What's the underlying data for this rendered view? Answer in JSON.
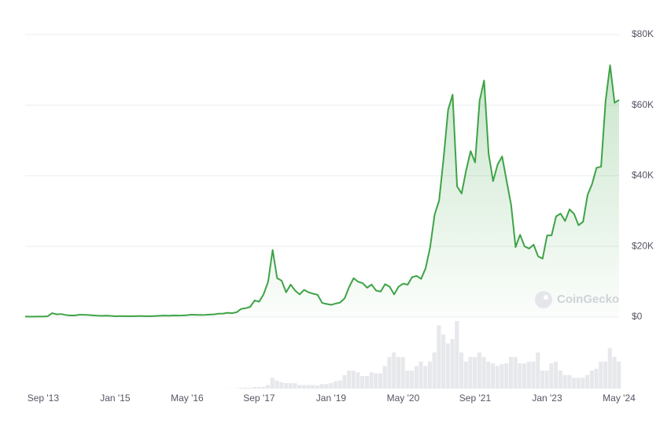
{
  "chart_data": {
    "type": "area",
    "watermark": "CoinGecko",
    "color": "#3ea346",
    "volume_color": "#e6e8eb",
    "grid": true,
    "x": [
      "2013-05",
      "2013-06",
      "2013-07",
      "2013-08",
      "2013-09",
      "2013-10",
      "2013-11",
      "2013-12",
      "2014-01",
      "2014-02",
      "2014-03",
      "2014-04",
      "2014-05",
      "2014-06",
      "2014-07",
      "2014-08",
      "2014-09",
      "2014-10",
      "2014-11",
      "2014-12",
      "2015-01",
      "2015-02",
      "2015-03",
      "2015-04",
      "2015-05",
      "2015-06",
      "2015-07",
      "2015-08",
      "2015-09",
      "2015-10",
      "2015-11",
      "2015-12",
      "2016-01",
      "2016-02",
      "2016-03",
      "2016-04",
      "2016-05",
      "2016-06",
      "2016-07",
      "2016-08",
      "2016-09",
      "2016-10",
      "2016-11",
      "2016-12",
      "2017-01",
      "2017-02",
      "2017-03",
      "2017-04",
      "2017-05",
      "2017-06",
      "2017-07",
      "2017-08",
      "2017-09",
      "2017-10",
      "2017-11",
      "2017-12",
      "2018-01",
      "2018-02",
      "2018-03",
      "2018-04",
      "2018-05",
      "2018-06",
      "2018-07",
      "2018-08",
      "2018-09",
      "2018-10",
      "2018-11",
      "2018-12",
      "2019-01",
      "2019-02",
      "2019-03",
      "2019-04",
      "2019-05",
      "2019-06",
      "2019-07",
      "2019-08",
      "2019-09",
      "2019-10",
      "2019-11",
      "2019-12",
      "2020-01",
      "2020-02",
      "2020-03",
      "2020-04",
      "2020-05",
      "2020-06",
      "2020-07",
      "2020-08",
      "2020-09",
      "2020-10",
      "2020-11",
      "2020-12",
      "2021-01",
      "2021-02",
      "2021-03",
      "2021-04",
      "2021-05",
      "2021-06",
      "2021-07",
      "2021-08",
      "2021-09",
      "2021-10",
      "2021-11",
      "2021-12",
      "2022-01",
      "2022-02",
      "2022-03",
      "2022-04",
      "2022-05",
      "2022-06",
      "2022-07",
      "2022-08",
      "2022-09",
      "2022-10",
      "2022-11",
      "2022-12",
      "2023-01",
      "2023-02",
      "2023-03",
      "2023-04",
      "2023-05",
      "2023-06",
      "2023-07",
      "2023-08",
      "2023-09",
      "2023-10",
      "2023-11",
      "2023-12",
      "2024-01",
      "2024-02",
      "2024-03",
      "2024-04",
      "2024-05"
    ],
    "values": [
      130,
      100,
      100,
      135,
      135,
      200,
      1100,
      750,
      850,
      570,
      450,
      450,
      630,
      640,
      590,
      480,
      390,
      340,
      380,
      320,
      220,
      250,
      245,
      235,
      230,
      265,
      285,
      230,
      236,
      315,
      375,
      430,
      370,
      440,
      415,
      450,
      530,
      670,
      625,
      575,
      610,
      700,
      745,
      960,
      970,
      1190,
      1080,
      1350,
      2300,
      2500,
      2870,
      4700,
      4350,
      6450,
      10000,
      19000,
      11000,
      10300,
      7000,
      9200,
      7500,
      6400,
      7700,
      7000,
      6600,
      6300,
      4000,
      3700,
      3450,
      3800,
      4100,
      5300,
      8500,
      11000,
      10000,
      9600,
      8300,
      9200,
      7500,
      7200,
      9300,
      8600,
      6400,
      8600,
      9450,
      9150,
      11300,
      11650,
      10800,
      13800,
      19700,
      29000,
      33000,
      45000,
      58700,
      63000,
      37000,
      35000,
      41500,
      47000,
      43800,
      61300,
      67000,
      46300,
      38500,
      43200,
      45500,
      38600,
      31800,
      19800,
      23300,
      20000,
      19400,
      20500,
      17200,
      16550,
      23100,
      23150,
      28500,
      29300,
      27200,
      30500,
      29200,
      26000,
      27000,
      34600,
      37700,
      42300,
      42600,
      61200,
      71300,
      60700,
      61500
    ],
    "volumes": [
      0.01,
      0.01,
      0.01,
      0.01,
      0.01,
      0.02,
      0.1,
      0.06,
      0.03,
      0.03,
      0.03,
      0.03,
      0.03,
      0.03,
      0.03,
      0.03,
      0.03,
      0.03,
      0.03,
      0.03,
      0.03,
      0.03,
      0.03,
      0.03,
      0.03,
      0.03,
      0.03,
      0.03,
      0.03,
      0.03,
      0.03,
      0.03,
      0.05,
      0.05,
      0.05,
      0.05,
      0.05,
      0.05,
      0.05,
      0.05,
      0.05,
      0.05,
      0.05,
      0.05,
      0.1,
      0.1,
      0.15,
      0.2,
      0.8,
      1.2,
      1,
      1.8,
      1.8,
      2,
      4,
      12,
      9,
      7,
      6,
      6,
      6,
      4,
      4,
      4,
      4,
      3.5,
      5,
      5,
      6,
      8,
      9,
      15,
      20,
      20,
      18,
      14,
      14,
      18,
      17,
      17,
      25,
      35,
      40,
      35,
      35,
      20,
      20,
      25,
      30,
      25,
      30,
      40,
      70,
      60,
      50,
      55,
      75,
      40,
      30,
      35,
      35,
      40,
      35,
      30,
      28,
      25,
      27,
      28,
      35,
      35,
      28,
      28,
      30,
      30,
      40,
      20,
      20,
      28,
      30,
      20,
      15,
      15,
      12,
      12,
      12,
      15,
      20,
      22,
      30,
      30,
      45,
      35,
      30
    ],
    "ylim": [
      0,
      80000
    ],
    "yticks": [
      {
        "value": 0,
        "label": "$0"
      },
      {
        "value": 20000,
        "label": "$20K"
      },
      {
        "value": 40000,
        "label": "$40K"
      },
      {
        "value": 60000,
        "label": "$60K"
      },
      {
        "value": 80000,
        "label": "$80K"
      }
    ],
    "xticks": [
      {
        "value": "2013-09",
        "label": "Sep '13"
      },
      {
        "value": "2015-01",
        "label": "Jan '15"
      },
      {
        "value": "2016-05",
        "label": "May '16"
      },
      {
        "value": "2017-09",
        "label": "Sep '17"
      },
      {
        "value": "2019-01",
        "label": "Jan '19"
      },
      {
        "value": "2020-05",
        "label": "May '20"
      },
      {
        "value": "2021-09",
        "label": "Sep '21"
      },
      {
        "value": "2023-01",
        "label": "Jan '23"
      },
      {
        "value": "2024-05",
        "label": "May '24"
      }
    ]
  }
}
